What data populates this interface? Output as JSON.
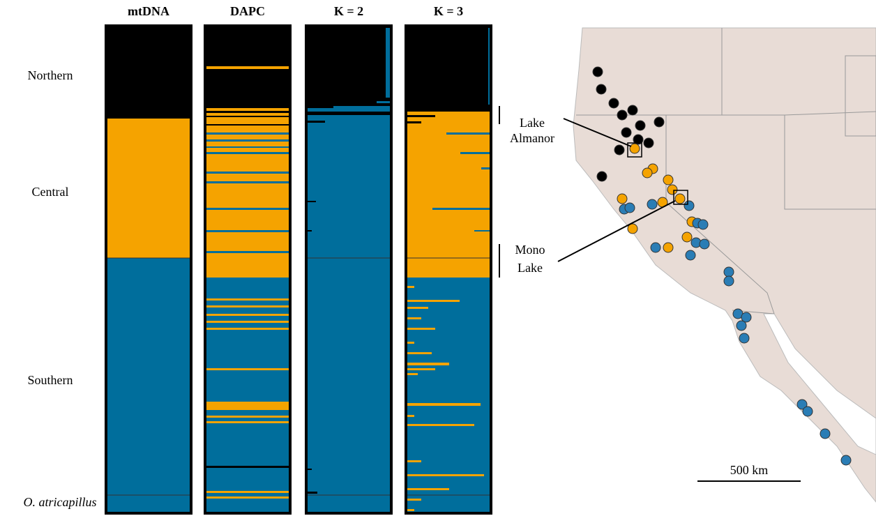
{
  "columns": [
    "mtDNA",
    "DAPC",
    "K = 2",
    "K = 3"
  ],
  "groups": [
    "Northern",
    "Central",
    "Southern"
  ],
  "species": "O. atricapillus",
  "map": {
    "lake_almanor": [
      "Lake",
      "Almanor"
    ],
    "mono_lake": [
      "Mono",
      "Lake"
    ],
    "scale": "500 km"
  }
}
